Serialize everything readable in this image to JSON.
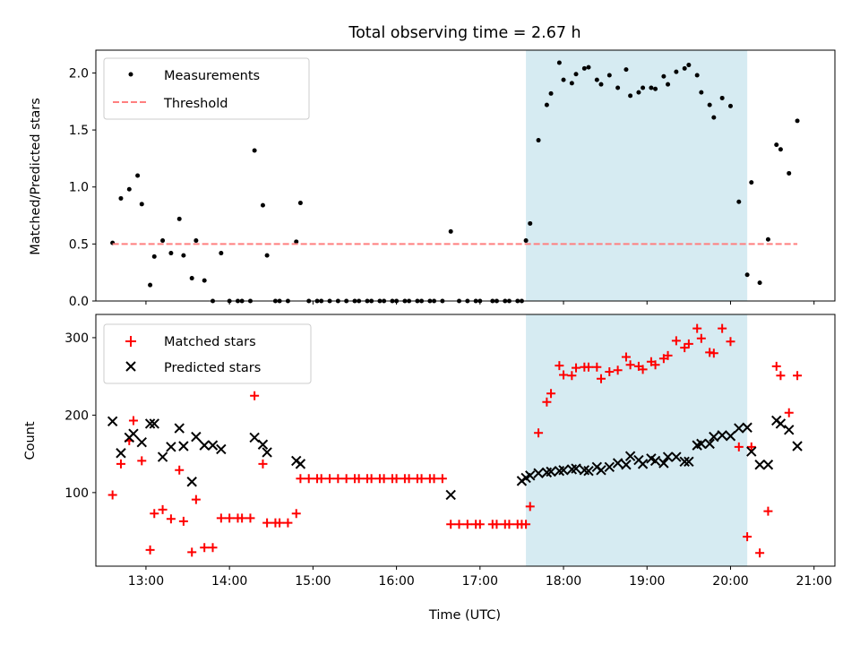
{
  "chart_data": [
    {
      "type": "scatter",
      "title": "Total observing time = 2.67 h",
      "xlabel": "",
      "ylabel": "Matched/Predicted stars",
      "xlim": [
        12.4,
        21.25
      ],
      "ylim": [
        0,
        2.2
      ],
      "yticks": [
        "0.0",
        "0.5",
        "1.0",
        "1.5",
        "2.0"
      ],
      "grid": false,
      "legend_location": "upper left",
      "highlight_span": {
        "start": 17.55,
        "end": 20.2,
        "color": "#add8e6"
      },
      "series": [
        {
          "name": "Measurements",
          "color": "#000000",
          "marker": "dot",
          "points": [
            [
              12.6,
              0.51
            ],
            [
              12.7,
              0.9
            ],
            [
              12.8,
              0.98
            ],
            [
              12.9,
              1.1
            ],
            [
              12.95,
              0.85
            ],
            [
              13.05,
              0.14
            ],
            [
              13.1,
              0.39
            ],
            [
              13.2,
              0.53
            ],
            [
              13.3,
              0.42
            ],
            [
              13.4,
              0.72
            ],
            [
              13.45,
              0.4
            ],
            [
              13.55,
              0.2
            ],
            [
              13.6,
              0.53
            ],
            [
              13.7,
              0.18
            ],
            [
              13.8,
              0.0
            ],
            [
              13.9,
              0.42
            ],
            [
              14.0,
              0.0
            ],
            [
              14.1,
              0.0
            ],
            [
              14.15,
              0.0
            ],
            [
              14.25,
              0.0
            ],
            [
              14.3,
              1.32
            ],
            [
              14.4,
              0.84
            ],
            [
              14.45,
              0.4
            ],
            [
              14.55,
              0.0
            ],
            [
              14.6,
              0.0
            ],
            [
              14.7,
              0.0
            ],
            [
              14.8,
              0.52
            ],
            [
              14.85,
              0.86
            ],
            [
              14.95,
              0.0
            ],
            [
              15.05,
              0.0
            ],
            [
              15.1,
              0.0
            ],
            [
              15.2,
              0.0
            ],
            [
              15.3,
              0.0
            ],
            [
              15.4,
              0.0
            ],
            [
              15.5,
              0.0
            ],
            [
              15.55,
              0.0
            ],
            [
              15.65,
              0.0
            ],
            [
              15.7,
              0.0
            ],
            [
              15.8,
              0.0
            ],
            [
              15.85,
              0.0
            ],
            [
              15.95,
              0.0
            ],
            [
              16.0,
              0.0
            ],
            [
              16.1,
              0.0
            ],
            [
              16.15,
              0.0
            ],
            [
              16.25,
              0.0
            ],
            [
              16.3,
              0.0
            ],
            [
              16.4,
              0.0
            ],
            [
              16.45,
              0.0
            ],
            [
              16.55,
              0.0
            ],
            [
              16.65,
              0.61
            ],
            [
              16.75,
              0.0
            ],
            [
              16.85,
              0.0
            ],
            [
              16.95,
              0.0
            ],
            [
              17.0,
              0.0
            ],
            [
              17.15,
              0.0
            ],
            [
              17.2,
              0.0
            ],
            [
              17.3,
              0.0
            ],
            [
              17.35,
              0.0
            ],
            [
              17.45,
              0.0
            ],
            [
              17.5,
              0.0
            ],
            [
              17.55,
              0.53
            ],
            [
              17.6,
              0.68
            ],
            [
              17.7,
              1.41
            ],
            [
              17.8,
              1.72
            ],
            [
              17.85,
              1.82
            ],
            [
              17.95,
              2.09
            ],
            [
              18.0,
              1.94
            ],
            [
              18.1,
              1.91
            ],
            [
              18.15,
              1.99
            ],
            [
              18.25,
              2.04
            ],
            [
              18.3,
              2.05
            ],
            [
              18.4,
              1.94
            ],
            [
              18.45,
              1.9
            ],
            [
              18.55,
              1.98
            ],
            [
              18.65,
              1.87
            ],
            [
              18.75,
              2.03
            ],
            [
              18.8,
              1.8
            ],
            [
              18.9,
              1.83
            ],
            [
              18.95,
              1.87
            ],
            [
              19.05,
              1.87
            ],
            [
              19.1,
              1.86
            ],
            [
              19.2,
              1.97
            ],
            [
              19.25,
              1.9
            ],
            [
              19.35,
              2.01
            ],
            [
              19.45,
              2.04
            ],
            [
              19.5,
              2.07
            ],
            [
              19.6,
              1.98
            ],
            [
              19.65,
              1.83
            ],
            [
              19.75,
              1.72
            ],
            [
              19.8,
              1.61
            ],
            [
              19.9,
              1.78
            ],
            [
              20.0,
              1.71
            ],
            [
              20.1,
              0.87
            ],
            [
              20.2,
              0.23
            ],
            [
              20.25,
              1.04
            ],
            [
              20.35,
              0.16
            ],
            [
              20.45,
              0.54
            ],
            [
              20.55,
              1.37
            ],
            [
              20.6,
              1.33
            ],
            [
              20.7,
              1.12
            ],
            [
              20.8,
              1.58
            ]
          ]
        },
        {
          "name": "Threshold",
          "color": "#ff7f7f",
          "marker": "dashed-line",
          "points": [
            [
              12.6,
              0.5
            ],
            [
              20.8,
              0.5
            ]
          ]
        }
      ]
    },
    {
      "type": "scatter",
      "title": "",
      "xlabel": "Time (UTC)",
      "ylabel": "Count",
      "xlim": [
        12.4,
        21.25
      ],
      "ylim": [
        5,
        330
      ],
      "yticks": [
        "100",
        "200",
        "300"
      ],
      "xticks": [
        "13:00",
        "14:00",
        "15:00",
        "16:00",
        "17:00",
        "18:00",
        "19:00",
        "20:00",
        "21:00"
      ],
      "grid": false,
      "legend_location": "upper left",
      "highlight_span": {
        "start": 17.55,
        "end": 20.2,
        "color": "#add8e6"
      },
      "series": [
        {
          "name": "Matched stars",
          "color": "#ff0000",
          "marker": "plus",
          "points": [
            [
              12.6,
              97
            ],
            [
              12.7,
              137
            ],
            [
              12.8,
              167
            ],
            [
              12.85,
              193
            ],
            [
              12.95,
              141
            ],
            [
              13.05,
              26
            ],
            [
              13.1,
              73
            ],
            [
              13.2,
              78
            ],
            [
              13.3,
              66
            ],
            [
              13.4,
              129
            ],
            [
              13.45,
              63
            ],
            [
              13.55,
              23
            ],
            [
              13.6,
              91
            ],
            [
              13.7,
              29
            ],
            [
              13.8,
              29
            ],
            [
              13.9,
              67
            ],
            [
              14.0,
              67
            ],
            [
              14.1,
              67
            ],
            [
              14.15,
              67
            ],
            [
              14.25,
              67
            ],
            [
              14.3,
              225
            ],
            [
              14.4,
              137
            ],
            [
              14.45,
              61
            ],
            [
              14.55,
              61
            ],
            [
              14.6,
              61
            ],
            [
              14.7,
              61
            ],
            [
              14.8,
              73
            ],
            [
              14.85,
              118
            ],
            [
              14.95,
              118
            ],
            [
              15.05,
              118
            ],
            [
              15.1,
              118
            ],
            [
              15.2,
              118
            ],
            [
              15.3,
              118
            ],
            [
              15.4,
              118
            ],
            [
              15.5,
              118
            ],
            [
              15.55,
              118
            ],
            [
              15.65,
              118
            ],
            [
              15.7,
              118
            ],
            [
              15.8,
              118
            ],
            [
              15.85,
              118
            ],
            [
              15.95,
              118
            ],
            [
              16.0,
              118
            ],
            [
              16.1,
              118
            ],
            [
              16.15,
              118
            ],
            [
              16.25,
              118
            ],
            [
              16.3,
              118
            ],
            [
              16.4,
              118
            ],
            [
              16.45,
              118
            ],
            [
              16.55,
              118
            ],
            [
              16.65,
              59
            ],
            [
              16.75,
              59
            ],
            [
              16.85,
              59
            ],
            [
              16.95,
              59
            ],
            [
              17.0,
              59
            ],
            [
              17.15,
              59
            ],
            [
              17.2,
              59
            ],
            [
              17.3,
              59
            ],
            [
              17.35,
              59
            ],
            [
              17.45,
              59
            ],
            [
              17.5,
              59
            ],
            [
              17.55,
              59
            ],
            [
              17.6,
              82
            ],
            [
              17.7,
              177
            ],
            [
              17.8,
              217
            ],
            [
              17.85,
              228
            ],
            [
              17.95,
              264
            ],
            [
              18.0,
              252
            ],
            [
              18.1,
              251
            ],
            [
              18.15,
              261
            ],
            [
              18.25,
              262
            ],
            [
              18.3,
              262
            ],
            [
              18.4,
              262
            ],
            [
              18.45,
              247
            ],
            [
              18.55,
              256
            ],
            [
              18.65,
              258
            ],
            [
              18.75,
              275
            ],
            [
              18.8,
              265
            ],
            [
              18.9,
              263
            ],
            [
              18.95,
              259
            ],
            [
              19.05,
              269
            ],
            [
              19.1,
              265
            ],
            [
              19.2,
              273
            ],
            [
              19.25,
              277
            ],
            [
              19.35,
              296
            ],
            [
              19.45,
              287
            ],
            [
              19.5,
              292
            ],
            [
              19.6,
              312
            ],
            [
              19.65,
              299
            ],
            [
              19.75,
              281
            ],
            [
              19.8,
              280
            ],
            [
              19.9,
              312
            ],
            [
              20.0,
              295
            ],
            [
              20.1,
              159
            ],
            [
              20.2,
              43
            ],
            [
              20.25,
              159
            ],
            [
              20.35,
              22
            ],
            [
              20.45,
              76
            ],
            [
              20.55,
              263
            ],
            [
              20.6,
              251
            ],
            [
              20.7,
              203
            ],
            [
              20.8,
              251
            ]
          ]
        },
        {
          "name": "Predicted stars",
          "color": "#000000",
          "marker": "x",
          "points": [
            [
              12.6,
              192
            ],
            [
              12.7,
              151
            ],
            [
              12.8,
              171
            ],
            [
              12.85,
              176
            ],
            [
              12.95,
              165
            ],
            [
              13.05,
              189
            ],
            [
              13.1,
              189
            ],
            [
              13.2,
              146
            ],
            [
              13.3,
              159
            ],
            [
              13.4,
              183
            ],
            [
              13.45,
              160
            ],
            [
              13.55,
              114
            ],
            [
              13.6,
              172
            ],
            [
              13.7,
              161
            ],
            [
              13.8,
              161
            ],
            [
              13.9,
              156
            ],
            [
              14.3,
              171
            ],
            [
              14.4,
              162
            ],
            [
              14.45,
              152
            ],
            [
              14.8,
              141
            ],
            [
              14.85,
              137
            ],
            [
              16.65,
              97
            ],
            [
              17.5,
              115
            ],
            [
              17.55,
              119
            ],
            [
              17.6,
              122
            ],
            [
              17.7,
              125
            ],
            [
              17.8,
              126
            ],
            [
              17.85,
              127
            ],
            [
              17.95,
              128
            ],
            [
              18.0,
              129
            ],
            [
              18.1,
              130
            ],
            [
              18.15,
              131
            ],
            [
              18.25,
              129
            ],
            [
              18.3,
              128
            ],
            [
              18.4,
              133
            ],
            [
              18.45,
              129
            ],
            [
              18.55,
              133
            ],
            [
              18.65,
              138
            ],
            [
              18.75,
              136
            ],
            [
              18.8,
              147
            ],
            [
              18.9,
              142
            ],
            [
              18.95,
              137
            ],
            [
              19.05,
              144
            ],
            [
              19.1,
              141
            ],
            [
              19.2,
              138
            ],
            [
              19.25,
              146
            ],
            [
              19.35,
              146
            ],
            [
              19.45,
              140
            ],
            [
              19.5,
              140
            ],
            [
              19.6,
              161
            ],
            [
              19.65,
              163
            ],
            [
              19.75,
              163
            ],
            [
              19.8,
              172
            ],
            [
              19.9,
              174
            ],
            [
              20.0,
              173
            ],
            [
              20.1,
              183
            ],
            [
              20.2,
              184
            ],
            [
              20.25,
              153
            ],
            [
              20.35,
              136
            ],
            [
              20.45,
              136
            ],
            [
              20.55,
              193
            ],
            [
              20.6,
              189
            ],
            [
              20.7,
              181
            ],
            [
              20.8,
              160
            ]
          ]
        }
      ]
    }
  ]
}
